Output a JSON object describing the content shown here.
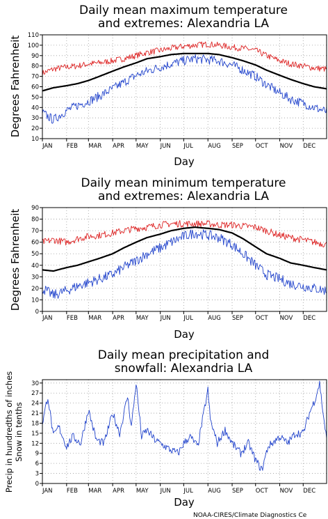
{
  "credit": "NOAA-CIRES/Climate Diagnostics Ce",
  "colors": {
    "mean": "#000000",
    "max_extreme": "#dd2222",
    "min_extreme": "#2244cc",
    "precip": "#2244cc",
    "snow": "#dd2222",
    "grid": "#9a9a9a"
  },
  "chart_data": [
    {
      "type": "line",
      "title": [
        "Daily mean maximum temperature",
        "and extremes: Alexandria LA"
      ],
      "xlabel": "Day",
      "ylabel": "Degrees Fahrenheit",
      "ylim": [
        10,
        110
      ],
      "yticks": [
        10,
        20,
        30,
        40,
        50,
        60,
        70,
        80,
        90,
        100,
        110
      ],
      "xlim": [
        1,
        365
      ],
      "categories": [
        "JAN",
        "FEB",
        "MAR",
        "APR",
        "MAY",
        "JUN",
        "JUL",
        "AUG",
        "SEP",
        "OCT",
        "NOV",
        "DEC"
      ],
      "month_start_days": [
        1,
        32,
        60,
        91,
        121,
        152,
        182,
        213,
        244,
        274,
        305,
        335
      ],
      "grid": true,
      "series": [
        {
          "role": "extreme_high",
          "color": "#dd2222",
          "x": [
            1,
            15,
            32,
            46,
            60,
            74,
            91,
            105,
            121,
            135,
            152,
            166,
            182,
            196,
            213,
            227,
            244,
            258,
            274,
            288,
            305,
            319,
            335,
            349,
            365
          ],
          "values": [
            73,
            77,
            79,
            80,
            82,
            83,
            85,
            87,
            90,
            93,
            95,
            97,
            99,
            100,
            101,
            100,
            98,
            97,
            95,
            90,
            85,
            82,
            80,
            78,
            77
          ]
        },
        {
          "role": "mean",
          "color": "#000000",
          "x": [
            1,
            15,
            32,
            46,
            60,
            74,
            91,
            105,
            121,
            135,
            152,
            166,
            182,
            196,
            213,
            227,
            244,
            258,
            274,
            288,
            305,
            319,
            335,
            349,
            365
          ],
          "values": [
            56,
            59,
            61,
            63,
            66,
            70,
            75,
            79,
            83,
            87,
            89,
            91,
            92,
            92,
            92,
            91,
            88,
            85,
            81,
            76,
            71,
            67,
            63,
            60,
            58
          ]
        },
        {
          "role": "extreme_low",
          "color": "#2244cc",
          "x": [
            1,
            15,
            32,
            46,
            60,
            74,
            91,
            105,
            121,
            135,
            152,
            166,
            182,
            196,
            213,
            227,
            244,
            258,
            274,
            288,
            305,
            319,
            335,
            349,
            365
          ],
          "values": [
            35,
            28,
            37,
            42,
            46,
            51,
            58,
            64,
            71,
            75,
            79,
            82,
            85,
            87,
            86,
            85,
            81,
            76,
            70,
            62,
            54,
            48,
            44,
            40,
            36
          ]
        }
      ]
    },
    {
      "type": "line",
      "title": [
        "Daily mean minimum temperature",
        "and extremes: Alexandria LA"
      ],
      "xlabel": "Day",
      "ylabel": "Degrees Fahrenheit",
      "ylim": [
        0,
        90
      ],
      "yticks": [
        0,
        10,
        20,
        30,
        40,
        50,
        60,
        70,
        80,
        90
      ],
      "xlim": [
        1,
        365
      ],
      "categories": [
        "JAN",
        "FEB",
        "MAR",
        "APR",
        "MAY",
        "JUN",
        "JUL",
        "AUG",
        "SEP",
        "OCT",
        "NOV",
        "DEC"
      ],
      "month_start_days": [
        1,
        32,
        60,
        91,
        121,
        152,
        182,
        213,
        244,
        274,
        305,
        335
      ],
      "grid": true,
      "series": [
        {
          "role": "extreme_high",
          "color": "#dd2222",
          "x": [
            1,
            15,
            32,
            46,
            60,
            74,
            91,
            105,
            121,
            135,
            152,
            166,
            182,
            196,
            213,
            227,
            244,
            258,
            274,
            288,
            305,
            319,
            335,
            349,
            365
          ],
          "values": [
            60,
            62,
            60,
            63,
            65,
            66,
            68,
            70,
            72,
            73,
            75,
            76,
            76,
            76,
            76,
            75,
            75,
            74,
            73,
            70,
            66,
            64,
            62,
            60,
            58
          ]
        },
        {
          "role": "mean",
          "color": "#000000",
          "x": [
            1,
            15,
            32,
            46,
            60,
            74,
            91,
            105,
            121,
            135,
            152,
            166,
            182,
            196,
            213,
            227,
            244,
            258,
            274,
            288,
            305,
            319,
            335,
            349,
            365
          ],
          "values": [
            36,
            35,
            38,
            40,
            43,
            46,
            50,
            55,
            60,
            64,
            67,
            70,
            72,
            73,
            72,
            71,
            68,
            63,
            56,
            50,
            46,
            42,
            40,
            38,
            36
          ]
        },
        {
          "role": "extreme_low",
          "color": "#2244cc",
          "x": [
            1,
            15,
            32,
            46,
            60,
            74,
            91,
            105,
            121,
            135,
            152,
            166,
            182,
            196,
            213,
            227,
            244,
            258,
            274,
            288,
            305,
            319,
            335,
            349,
            365
          ],
          "values": [
            20,
            14,
            18,
            22,
            25,
            28,
            32,
            38,
            44,
            50,
            55,
            60,
            65,
            68,
            66,
            64,
            58,
            50,
            40,
            32,
            28,
            24,
            22,
            20,
            18
          ]
        }
      ]
    },
    {
      "type": "line",
      "title": [
        "Daily mean precipitation and",
        "snowfall: Alexandria LA"
      ],
      "xlabel": "Day",
      "ylabel": [
        "Precip in hundredths of inches",
        "Snow in tenths"
      ],
      "ylim": [
        0,
        31
      ],
      "yticks": [
        0,
        3,
        6,
        9,
        12,
        15,
        18,
        21,
        24,
        27,
        30
      ],
      "xlim": [
        1,
        365
      ],
      "categories": [
        "JAN",
        "FEB",
        "MAR",
        "APR",
        "MAY",
        "JUN",
        "JUL",
        "AUG",
        "SEP",
        "OCT",
        "NOV",
        "DEC"
      ],
      "month_start_days": [
        1,
        32,
        60,
        91,
        121,
        152,
        182,
        213,
        244,
        274,
        305,
        335
      ],
      "grid": true,
      "series": [
        {
          "role": "precip",
          "color": "#2244cc",
          "x": [
            1,
            8,
            15,
            22,
            32,
            40,
            50,
            60,
            70,
            80,
            91,
            100,
            110,
            115,
            121,
            128,
            135,
            145,
            152,
            165,
            175,
            182,
            190,
            200,
            213,
            216,
            225,
            235,
            244,
            255,
            265,
            274,
            282,
            290,
            300,
            305,
            315,
            325,
            335,
            343,
            350,
            356,
            360,
            365
          ],
          "values": [
            18,
            26,
            14,
            17,
            11,
            14,
            12,
            22,
            13,
            12,
            21,
            15,
            26,
            17,
            30,
            14,
            16,
            13,
            12,
            10,
            9,
            12,
            14,
            11,
            28,
            19,
            12,
            16,
            12,
            9,
            12,
            7,
            4,
            11,
            13,
            14,
            12,
            15,
            15,
            21,
            25,
            30,
            22,
            13
          ]
        },
        {
          "role": "snow",
          "color": "#dd2222",
          "x": [
            1,
            365
          ],
          "values": [
            0,
            0
          ]
        }
      ]
    }
  ]
}
